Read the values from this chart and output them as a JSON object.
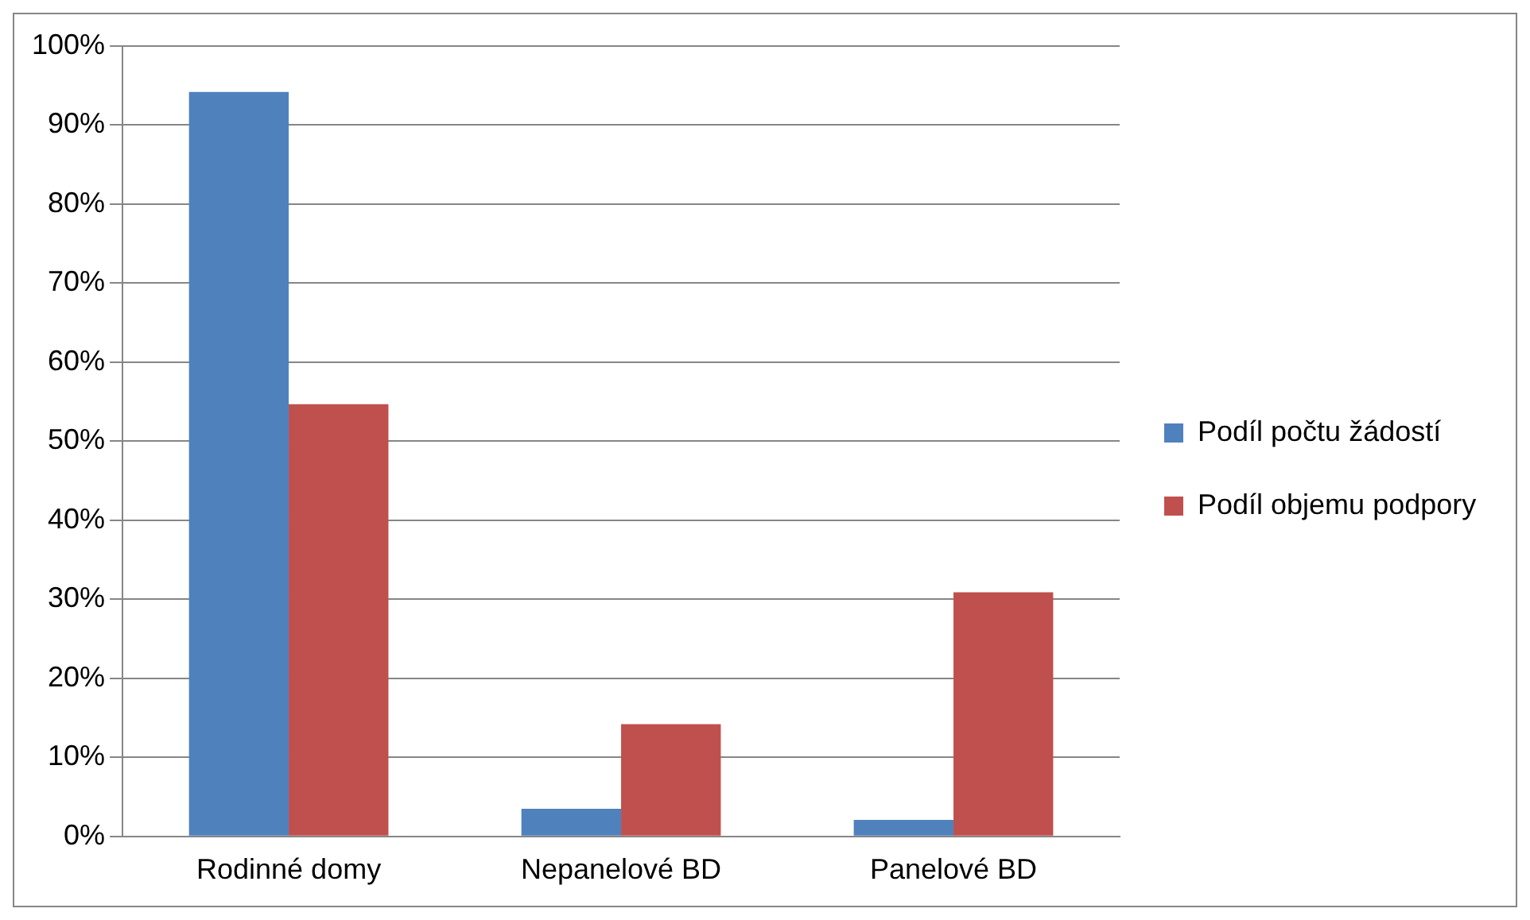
{
  "chart_data": {
    "type": "bar",
    "categories": [
      "Rodinné domy",
      "Nepanelové BD",
      "Panelové BD"
    ],
    "series": [
      {
        "name": "Podíl počtu žádostí",
        "color": "#4f81bd",
        "values": [
          94.2,
          3.5,
          2.1
        ]
      },
      {
        "name": "Podíl objemu podpory",
        "color": "#c0504d",
        "values": [
          54.7,
          14.2,
          30.9
        ]
      }
    ],
    "ylim": [
      0,
      100
    ],
    "yticks": [
      {
        "value": 0,
        "label": "0%"
      },
      {
        "value": 10,
        "label": "10%"
      },
      {
        "value": 20,
        "label": "20%"
      },
      {
        "value": 30,
        "label": "30%"
      },
      {
        "value": 40,
        "label": "40%"
      },
      {
        "value": 50,
        "label": "50%"
      },
      {
        "value": 60,
        "label": "60%"
      },
      {
        "value": 70,
        "label": "70%"
      },
      {
        "value": 80,
        "label": "80%"
      },
      {
        "value": 90,
        "label": "90%"
      },
      {
        "value": 100,
        "label": "100%"
      }
    ],
    "grid": "y",
    "legend": "right"
  }
}
